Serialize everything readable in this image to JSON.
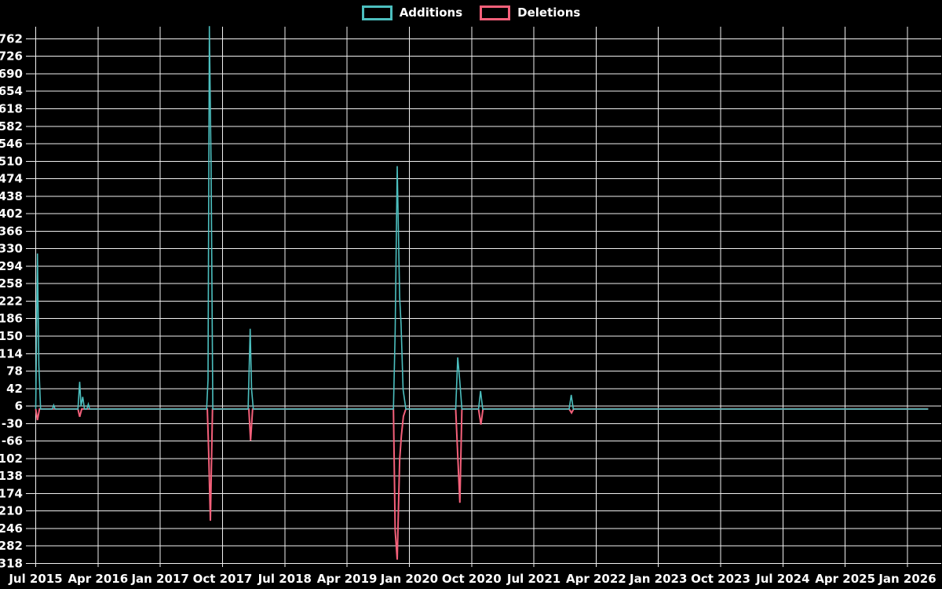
{
  "legend": {
    "additions_label": "Additions",
    "deletions_label": "Deletions"
  },
  "colors": {
    "background": "#000000",
    "grid": "#f0f0f0",
    "text": "#ffffff",
    "additions": "#4CBFBF",
    "deletions": "#F4607A"
  },
  "chart_data": {
    "type": "line",
    "title": "",
    "xlabel": "",
    "ylabel": "",
    "grid": true,
    "legend_position": "top-center",
    "x_axis": {
      "tick_labels": [
        "Jul 2015",
        "Apr 2016",
        "Jan 2017",
        "Oct 2017",
        "Jul 2018",
        "Apr 2019",
        "Jan 2020",
        "Oct 2020",
        "Jul 2021",
        "Apr 2022",
        "Jan 2023",
        "Oct 2023",
        "Jul 2024",
        "Apr 2025",
        "Jan 2026"
      ],
      "tick_interval_months": 9,
      "x_unit": "months_since_2015_07",
      "range_months": [
        0,
        129
      ]
    },
    "y_axis": {
      "min": -318,
      "max": 762,
      "step": 36,
      "ticks": [
        762,
        726,
        690,
        654,
        618,
        582,
        546,
        510,
        474,
        438,
        402,
        366,
        330,
        294,
        258,
        222,
        186,
        150,
        114,
        78,
        42,
        6,
        -30,
        -66,
        -102,
        -138,
        -174,
        -210,
        -246,
        -282,
        -318
      ]
    },
    "series": [
      {
        "name": "Additions",
        "color": "#4CBFBF",
        "points": [
          [
            0,
            0
          ],
          [
            0.25,
            320
          ],
          [
            0.45,
            90
          ],
          [
            0.7,
            0
          ],
          [
            2.4,
            0
          ],
          [
            2.6,
            8
          ],
          [
            2.8,
            0
          ],
          [
            6.1,
            0
          ],
          [
            6.35,
            56
          ],
          [
            6.55,
            6
          ],
          [
            6.8,
            25
          ],
          [
            7.05,
            0
          ],
          [
            7.4,
            0
          ],
          [
            7.6,
            10
          ],
          [
            7.8,
            0
          ],
          [
            24.7,
            0
          ],
          [
            24.9,
            60
          ],
          [
            25.1,
            788
          ],
          [
            25.35,
            500
          ],
          [
            25.6,
            0
          ],
          [
            30.7,
            0
          ],
          [
            31.0,
            165
          ],
          [
            31.2,
            40
          ],
          [
            31.45,
            0
          ],
          [
            51.7,
            0
          ],
          [
            51.95,
            160
          ],
          [
            52.25,
            500
          ],
          [
            52.6,
            230
          ],
          [
            52.8,
            175
          ],
          [
            53.1,
            40
          ],
          [
            53.5,
            0
          ],
          [
            60.7,
            0
          ],
          [
            61.0,
            106
          ],
          [
            61.3,
            56
          ],
          [
            61.6,
            0
          ],
          [
            64.0,
            0
          ],
          [
            64.3,
            37
          ],
          [
            64.6,
            0
          ],
          [
            77.1,
            0
          ],
          [
            77.4,
            29
          ],
          [
            77.7,
            0
          ],
          [
            129,
            0
          ]
        ]
      },
      {
        "name": "Deletions",
        "color": "#F4607A",
        "points": [
          [
            0,
            0
          ],
          [
            0.25,
            -23
          ],
          [
            0.55,
            0
          ],
          [
            6.1,
            0
          ],
          [
            6.35,
            -16
          ],
          [
            6.65,
            0
          ],
          [
            24.8,
            0
          ],
          [
            25.0,
            -87
          ],
          [
            25.25,
            -230
          ],
          [
            25.55,
            0
          ],
          [
            30.8,
            0
          ],
          [
            31.05,
            -65
          ],
          [
            31.35,
            0
          ],
          [
            51.7,
            0
          ],
          [
            51.95,
            -250
          ],
          [
            52.25,
            -310
          ],
          [
            52.6,
            -105
          ],
          [
            52.85,
            -55
          ],
          [
            53.15,
            -15
          ],
          [
            53.5,
            0
          ],
          [
            60.7,
            0
          ],
          [
            61.0,
            -95
          ],
          [
            61.3,
            -193
          ],
          [
            61.6,
            0
          ],
          [
            64.0,
            0
          ],
          [
            64.35,
            -32
          ],
          [
            64.65,
            0
          ],
          [
            77.1,
            0
          ],
          [
            77.45,
            -8
          ],
          [
            77.75,
            0
          ],
          [
            129,
            0
          ]
        ]
      }
    ]
  }
}
